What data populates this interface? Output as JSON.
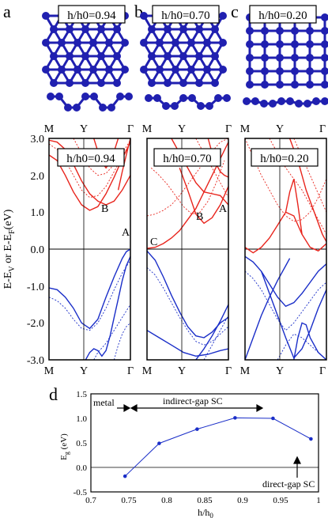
{
  "colors": {
    "conduction": "#e8241c",
    "valence": "#1a2ec8",
    "atom": "#2020b0",
    "frame": "#000000"
  },
  "panel_letters": [
    "a",
    "b",
    "c",
    "d"
  ],
  "structure_labels": [
    "h/h0=0.94",
    "h/h0=0.70",
    "h/h0=0.20"
  ],
  "band_labels": [
    "h/h0=0.94",
    "h/h0=0.70",
    "h/h0=0.20"
  ],
  "kpoints": [
    "M",
    "Y",
    "Γ"
  ],
  "band_ylabel": "E-E",
  "band_ylabel_sub1": "V",
  "band_ylabel_mid": " or E-E",
  "band_ylabel_sub2": "F",
  "band_ylabel_end": "(eV)",
  "band_yticks": [
    "3.0",
    "2.0",
    "1.0",
    "0.0",
    "-1.0",
    "-2.0",
    "-3.0"
  ],
  "band_annotations": {
    "p1_A": "A",
    "p1_B": "B",
    "p2_A": "A",
    "p2_B": "B",
    "p2_C": "C"
  },
  "annotations_d": {
    "metal": "metal",
    "indirect": "indirect-gap SC",
    "direct": "direct-gap SC"
  },
  "chart_data": [
    {
      "type": "line",
      "panel": "d",
      "x": [
        0.745,
        0.79,
        0.84,
        0.89,
        0.94,
        0.99
      ],
      "series": [
        {
          "values": [
            -0.18,
            0.49,
            0.78,
            1.01,
            1.0,
            0.58
          ]
        }
      ],
      "xlabel": "h/h",
      "xlabel_sub": "0",
      "ylabel": "E",
      "ylabel_sub": "g",
      "ylabel_unit": " (eV)",
      "xlim": [
        0.7,
        1.0
      ],
      "ylim": [
        -0.5,
        1.5
      ],
      "xticks": [
        "0.7",
        "0.75",
        "0.8",
        "0.85",
        "0.9",
        "0.95",
        "1"
      ],
      "yticks": [
        "-0.5",
        "0.0",
        "0.5",
        "1.0",
        "1.5"
      ],
      "zero_line": 0
    },
    {
      "type": "line",
      "panel": "band-1",
      "ylim": [
        -3,
        3
      ],
      "xlim": [
        0,
        1
      ],
      "series": [
        {
          "name": "cb1",
          "style": "solid",
          "band": "conduction",
          "x": [
            0,
            0.1,
            0.2,
            0.3,
            0.4,
            0.5,
            0.6,
            0.7,
            0.8,
            0.9,
            1.0
          ],
          "y": [
            2.55,
            2.4,
            2.0,
            1.55,
            1.2,
            1.05,
            1.15,
            1.5,
            1.95,
            2.45,
            2.9
          ]
        },
        {
          "name": "cb2",
          "style": "solid",
          "band": "conduction",
          "x": [
            0,
            0.1,
            0.2,
            0.3,
            0.4,
            0.5,
            0.6,
            0.7,
            0.8,
            0.9,
            1.0
          ],
          "y": [
            2.95,
            2.9,
            2.7,
            2.3,
            1.85,
            1.5,
            1.3,
            1.2,
            1.3,
            1.6,
            2.0
          ]
        },
        {
          "name": "cb3",
          "style": "solid",
          "band": "conduction",
          "x": [
            0.55,
            0.6,
            0.65,
            0.7,
            0.75,
            0.8,
            0.85
          ],
          "y": [
            3.0,
            2.65,
            2.35,
            2.2,
            2.35,
            2.65,
            3.0
          ]
        },
        {
          "name": "cb4",
          "style": "solid",
          "band": "conduction",
          "x": [
            0.85,
            0.9,
            0.95,
            1.0
          ],
          "y": [
            1.6,
            2.1,
            2.55,
            3.0
          ]
        },
        {
          "name": "cb5",
          "style": "dotted",
          "band": "conduction",
          "x": [
            0,
            0.1,
            0.2,
            0.3,
            0.4,
            0.5,
            0.6,
            0.7,
            0.8,
            0.9,
            1.0
          ],
          "y": [
            2.85,
            2.7,
            2.4,
            2.0,
            1.6,
            1.4,
            1.45,
            1.7,
            2.1,
            2.5,
            2.9
          ]
        },
        {
          "name": "cb6",
          "style": "dotted",
          "band": "conduction",
          "x": [
            0.3,
            0.4,
            0.5,
            0.6,
            0.7,
            0.8,
            0.9,
            1.0
          ],
          "y": [
            3.0,
            2.6,
            2.2,
            2.0,
            2.05,
            2.3,
            2.6,
            2.95
          ]
        },
        {
          "name": "vb1",
          "style": "solid",
          "band": "valence",
          "x": [
            0,
            0.1,
            0.2,
            0.3,
            0.4,
            0.5,
            0.6,
            0.7,
            0.8,
            0.9,
            0.95,
            1.0
          ],
          "y": [
            -1.05,
            -1.1,
            -1.3,
            -1.6,
            -2.0,
            -2.15,
            -1.9,
            -1.3,
            -0.75,
            -0.25,
            -0.07,
            0.0
          ]
        },
        {
          "name": "vb2",
          "style": "solid",
          "band": "valence",
          "x": [
            0.45,
            0.5,
            0.55,
            0.6,
            0.65,
            0.7,
            0.75,
            0.8,
            0.85,
            0.9,
            0.95,
            1.0
          ],
          "y": [
            -3.0,
            -2.8,
            -2.7,
            -2.75,
            -2.9,
            -2.75,
            -2.35,
            -1.85,
            -1.35,
            -0.85,
            -0.45,
            -0.2
          ]
        },
        {
          "name": "vb3",
          "style": "dotted",
          "band": "valence",
          "x": [
            0,
            0.1,
            0.2,
            0.3,
            0.4,
            0.5,
            0.6,
            0.7,
            0.8,
            0.9,
            1.0
          ],
          "y": [
            -1.3,
            -1.4,
            -1.6,
            -1.9,
            -2.15,
            -2.2,
            -2.0,
            -1.6,
            -1.1,
            -0.65,
            -0.3
          ]
        },
        {
          "name": "vb4",
          "style": "dotted",
          "band": "valence",
          "x": [
            0.55,
            0.6,
            0.7,
            0.8,
            0.9,
            1.0
          ],
          "y": [
            -3.0,
            -2.8,
            -2.55,
            -2.2,
            -1.85,
            -1.5
          ]
        },
        {
          "name": "vb5",
          "style": "dotted",
          "band": "valence",
          "x": [
            0.8,
            0.85,
            0.9,
            0.95,
            1.0
          ],
          "y": [
            -3.0,
            -2.6,
            -2.3,
            -2.1,
            -2.0
          ]
        }
      ]
    },
    {
      "type": "line",
      "panel": "band-2",
      "ylim": [
        -3,
        3
      ],
      "xlim": [
        0,
        1
      ],
      "series": [
        {
          "name": "cb1",
          "style": "solid",
          "band": "conduction",
          "x": [
            0,
            0.1,
            0.2,
            0.3,
            0.4,
            0.5,
            0.6,
            0.7,
            0.8,
            0.9,
            1.0
          ],
          "y": [
            0.02,
            0.05,
            0.15,
            0.3,
            0.5,
            0.8,
            1.1,
            1.55,
            2.0,
            2.45,
            2.9
          ]
        },
        {
          "name": "cb2",
          "style": "solid",
          "band": "conduction",
          "x": [
            0.4,
            0.5,
            0.6,
            0.7,
            0.8,
            0.9,
            1.0
          ],
          "y": [
            2.2,
            1.6,
            0.95,
            0.7,
            0.85,
            1.2,
            1.7
          ]
        },
        {
          "name": "cb3",
          "style": "solid",
          "band": "conduction",
          "x": [
            0.3,
            0.4,
            0.5,
            0.6,
            0.7,
            0.8,
            0.9,
            1.0
          ],
          "y": [
            3.0,
            2.6,
            2.2,
            1.8,
            1.55,
            1.5,
            1.45,
            1.2
          ]
        },
        {
          "name": "cb4",
          "style": "solid",
          "band": "conduction",
          "x": [
            0.75,
            0.8,
            0.85,
            0.9,
            0.95,
            1.0
          ],
          "y": [
            3.0,
            2.6,
            2.3,
            2.1,
            2.0,
            1.95
          ]
        },
        {
          "name": "cb5",
          "style": "dotted",
          "band": "conduction",
          "x": [
            0,
            0.1,
            0.2,
            0.3,
            0.4,
            0.5,
            0.6,
            0.7,
            0.8,
            0.9,
            1.0
          ],
          "y": [
            0.9,
            0.95,
            1.05,
            1.2,
            1.45,
            1.75,
            2.05,
            2.35,
            2.65,
            2.9,
            3.0
          ]
        },
        {
          "name": "cb6",
          "style": "dotted",
          "band": "conduction",
          "x": [
            0.05,
            0.15,
            0.25,
            0.35,
            0.45,
            0.55,
            0.65,
            0.75,
            0.85,
            0.95
          ],
          "y": [
            2.2,
            2.0,
            1.75,
            1.45,
            1.15,
            0.95,
            1.0,
            1.3,
            1.8,
            2.4
          ]
        },
        {
          "name": "cb7",
          "style": "dotted",
          "band": "conduction",
          "x": [
            0.6,
            0.7,
            0.8,
            0.9,
            1.0
          ],
          "y": [
            3.0,
            2.6,
            2.2,
            1.8,
            1.4
          ]
        },
        {
          "name": "vb1",
          "style": "solid",
          "band": "valence",
          "x": [
            0,
            0.1,
            0.2,
            0.3,
            0.4,
            0.5,
            0.6,
            0.7,
            0.8,
            0.9,
            1.0
          ],
          "y": [
            -0.05,
            -0.3,
            -0.75,
            -1.25,
            -1.7,
            -2.1,
            -2.35,
            -2.4,
            -2.25,
            -2.0,
            -1.85
          ]
        },
        {
          "name": "vb2",
          "style": "solid",
          "band": "valence",
          "x": [
            0.6,
            0.7,
            0.8,
            0.9,
            1.0
          ],
          "y": [
            -3.0,
            -2.7,
            -2.35,
            -1.95,
            -1.5
          ]
        },
        {
          "name": "vb3",
          "style": "solid",
          "band": "valence",
          "x": [
            0,
            0.15,
            0.3,
            0.45,
            0.6,
            0.75,
            0.9,
            1.0
          ],
          "y": [
            -2.2,
            -2.4,
            -2.6,
            -2.8,
            -2.9,
            -2.85,
            -2.75,
            -2.7
          ]
        },
        {
          "name": "vb4",
          "style": "dotted",
          "band": "valence",
          "x": [
            0,
            0.1,
            0.2,
            0.3,
            0.4,
            0.5,
            0.6,
            0.7,
            0.8,
            0.9,
            1.0
          ],
          "y": [
            -0.5,
            -0.7,
            -1.05,
            -1.45,
            -1.85,
            -2.2,
            -2.5,
            -2.6,
            -2.5,
            -2.3,
            -2.1
          ]
        },
        {
          "name": "vb5",
          "style": "dotted",
          "band": "valence",
          "x": [
            0.7,
            0.8,
            0.9,
            1.0
          ],
          "y": [
            -3.0,
            -2.6,
            -2.2,
            -1.8
          ]
        }
      ]
    },
    {
      "type": "line",
      "panel": "band-3",
      "ylim": [
        -3,
        3
      ],
      "xlim": [
        0,
        1
      ],
      "series": [
        {
          "name": "cb1",
          "style": "solid",
          "band": "conduction",
          "x": [
            0,
            0.1,
            0.2,
            0.3,
            0.4,
            0.5,
            0.6,
            0.7,
            0.8,
            0.9,
            1.0
          ],
          "y": [
            0.05,
            -0.1,
            0.05,
            0.3,
            0.65,
            1.0,
            0.9,
            0.4,
            0.05,
            -0.05,
            0.15
          ]
        },
        {
          "name": "cb2",
          "style": "solid",
          "band": "conduction",
          "x": [
            0.5,
            0.55,
            0.6,
            0.65,
            0.7
          ],
          "y": [
            1.0,
            1.55,
            1.9,
            1.2,
            0.4
          ]
        },
        {
          "name": "cb3",
          "style": "solid",
          "band": "conduction",
          "x": [
            0.55,
            0.65,
            0.75,
            0.85,
            0.95,
            1.0
          ],
          "y": [
            3.0,
            2.4,
            1.6,
            1.0,
            0.4,
            0.2
          ]
        },
        {
          "name": "cb4",
          "style": "dotted",
          "band": "conduction",
          "x": [
            0,
            0.1,
            0.2,
            0.3,
            0.4,
            0.5,
            0.6,
            0.7,
            0.8,
            0.9,
            1.0
          ],
          "y": [
            3.0,
            2.5,
            2.0,
            1.6,
            1.2,
            0.9,
            0.75,
            0.8,
            1.0,
            1.4,
            1.9
          ]
        },
        {
          "name": "cb5",
          "style": "dotted",
          "band": "conduction",
          "x": [
            0.3,
            0.4,
            0.5,
            0.6,
            0.7,
            0.8,
            0.9,
            1.0
          ],
          "y": [
            3.0,
            2.6,
            2.2,
            1.9,
            1.6,
            1.2,
            0.8,
            0.4
          ]
        },
        {
          "name": "cb6",
          "style": "dotted",
          "band": "conduction",
          "x": [
            0.6,
            0.7,
            0.8,
            0.9,
            1.0
          ],
          "y": [
            3.0,
            2.5,
            2.0,
            1.5,
            1.0
          ]
        },
        {
          "name": "vb1",
          "style": "solid",
          "band": "valence",
          "x": [
            0,
            0.1,
            0.2,
            0.3,
            0.4,
            0.5,
            0.6,
            0.7,
            0.8,
            0.9,
            1.0
          ],
          "y": [
            -0.2,
            -0.35,
            -0.6,
            -0.95,
            -1.3,
            -1.55,
            -1.45,
            -1.2,
            -0.9,
            -0.6,
            -0.4
          ]
        },
        {
          "name": "vb2",
          "style": "solid",
          "band": "valence",
          "x": [
            0,
            0.1,
            0.2,
            0.3,
            0.4,
            0.5,
            0.55
          ],
          "y": [
            -3.0,
            -2.4,
            -1.8,
            -1.3,
            -0.85,
            -0.45,
            -0.25
          ]
        },
        {
          "name": "vb3",
          "style": "solid",
          "band": "valence",
          "x": [
            0.2,
            0.3,
            0.4,
            0.5,
            0.6,
            0.7,
            0.8,
            0.9,
            1.0
          ],
          "y": [
            -0.6,
            -1.2,
            -1.8,
            -2.4,
            -2.95,
            -2.7,
            -2.2,
            -1.6,
            -1.1
          ]
        },
        {
          "name": "vb4",
          "style": "solid",
          "band": "valence",
          "x": [
            0.6,
            0.65,
            0.7,
            0.75,
            0.8,
            0.9,
            1.0
          ],
          "y": [
            -3.0,
            -2.4,
            -2.0,
            -2.05,
            -2.4,
            -2.8,
            -3.0
          ]
        },
        {
          "name": "vb5",
          "style": "dotted",
          "band": "valence",
          "x": [
            0,
            0.1,
            0.2,
            0.3,
            0.4,
            0.5,
            0.6,
            0.7,
            0.8,
            0.9,
            1.0
          ],
          "y": [
            -0.6,
            -0.8,
            -1.1,
            -1.5,
            -1.9,
            -2.2,
            -2.0,
            -1.7,
            -1.4,
            -1.1,
            -0.9
          ]
        },
        {
          "name": "vb6",
          "style": "dotted",
          "band": "valence",
          "x": [
            0.4,
            0.5,
            0.6,
            0.7,
            0.8,
            0.9,
            1.0
          ],
          "y": [
            -3.0,
            -2.6,
            -2.3,
            -2.4,
            -2.6,
            -2.8,
            -3.0
          ]
        }
      ]
    }
  ]
}
